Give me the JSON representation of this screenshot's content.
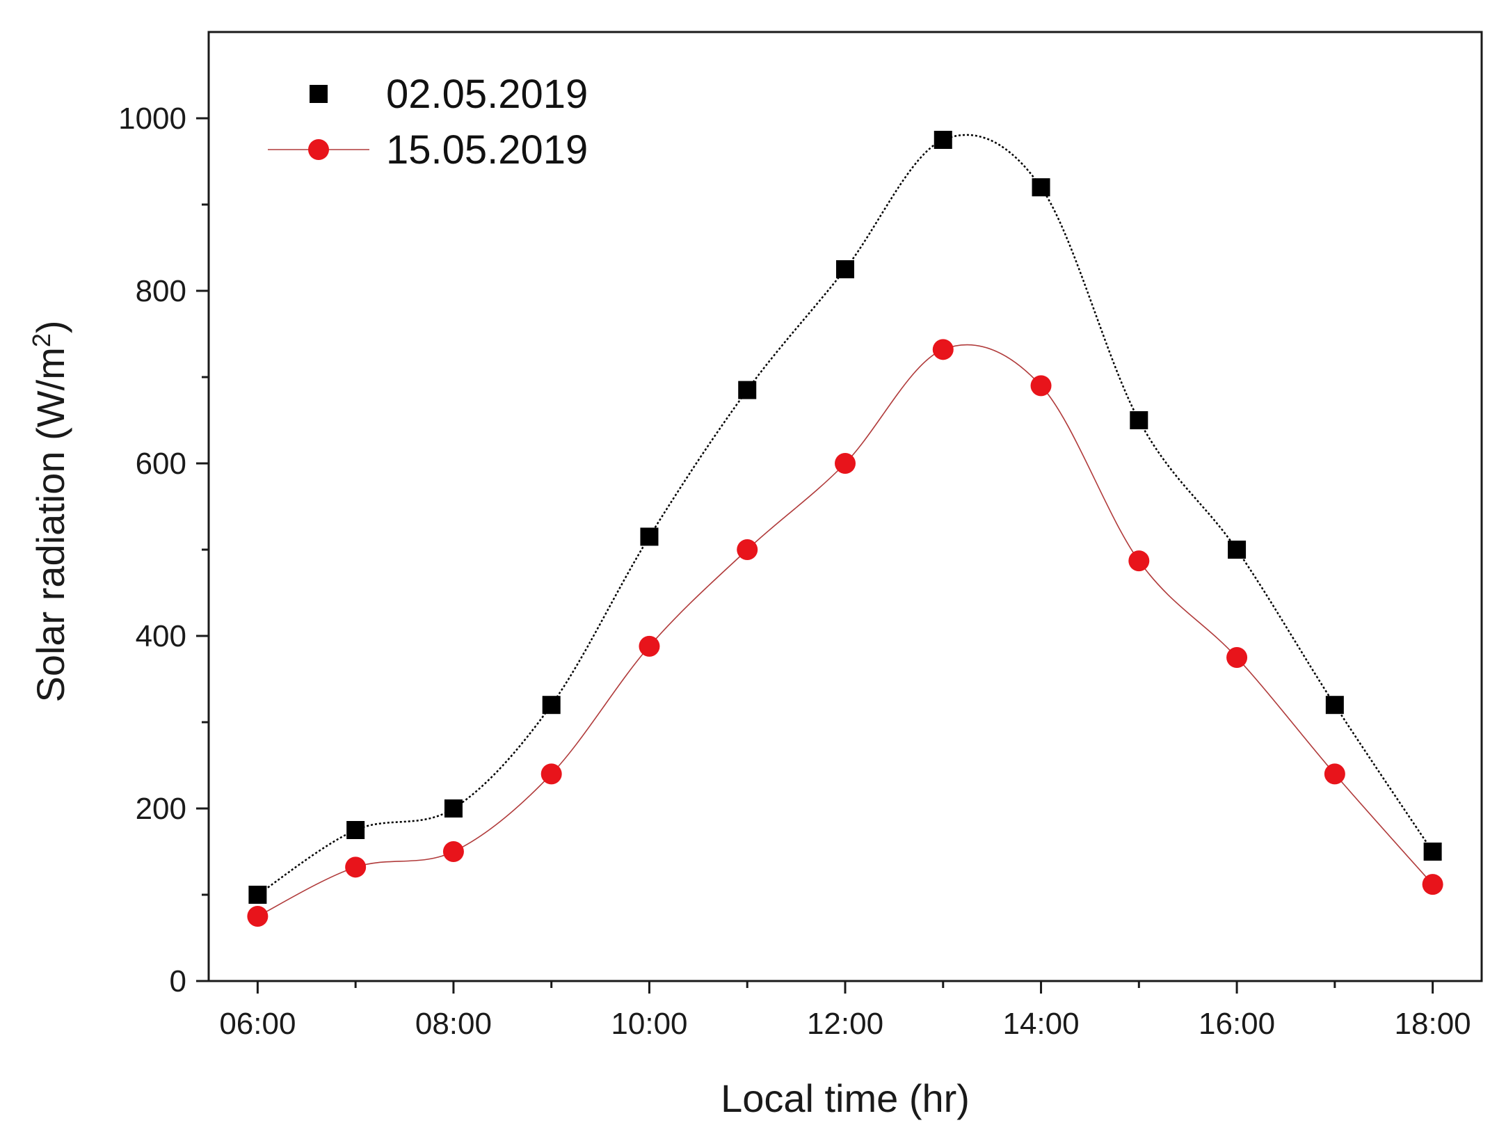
{
  "chart_data": {
    "type": "scatter",
    "xlabel": "Local time (hr)",
    "ylabel": "Solar radiation (W/m",
    "ylabel_superscript": "2",
    "ylabel_close": ")",
    "x": [
      6,
      7,
      8,
      9,
      10,
      11,
      12,
      13,
      14,
      15,
      16,
      17,
      18
    ],
    "x_tick_values": [
      6,
      8,
      10,
      12,
      14,
      16,
      18
    ],
    "x_tick_labels": [
      "06:00",
      "08:00",
      "10:00",
      "12:00",
      "14:00",
      "16:00",
      "18:00"
    ],
    "y_tick_values": [
      0,
      200,
      400,
      600,
      800,
      1000
    ],
    "y_tick_labels": [
      "0",
      "200",
      "400",
      "600",
      "800",
      "1000"
    ],
    "xlim": [
      5.5,
      18.5
    ],
    "ylim": [
      0,
      1100
    ],
    "grid": false,
    "legend_position": "top-left",
    "series": [
      {
        "name": "02.05.2019",
        "marker": "square",
        "color": "#000000",
        "line_style": "dotted",
        "values": [
          100,
          175,
          200,
          320,
          515,
          685,
          825,
          975,
          920,
          650,
          500,
          320,
          150
        ]
      },
      {
        "name": "15.05.2019",
        "marker": "circle",
        "color": "#e8141b",
        "line_color": "#b03a3a",
        "line_style": "thin",
        "values": [
          75,
          132,
          150,
          240,
          388,
          500,
          600,
          732,
          690,
          487,
          375,
          240,
          112
        ]
      }
    ]
  }
}
